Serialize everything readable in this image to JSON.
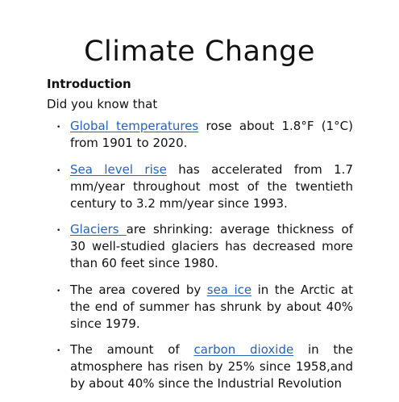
{
  "title": "Climate Change",
  "heading": "Introduction",
  "intro": "Did you know that",
  "bullets": [
    {
      "link": "Global temperatures",
      "text": " rose about 1.8°F (1°C) from 1901 to 2020."
    },
    {
      "link": "Sea level rise",
      "text": " has accelerated from 1.7 mm/year throughout most of the twentieth century to 3.2 mm/year since 1993."
    },
    {
      "link": "Glaciers ",
      "text": "are shrinking: average thickness of 30 well-studied glaciers has decreased more than 60 feet since 1980."
    },
    {
      "before": "The area covered by ",
      "link": "sea ice",
      "text": " in the Arctic at the end of summer has shrunk by about 40% since 1979."
    },
    {
      "before": "The amount of ",
      "link": "carbon dioxide",
      "text": " in the atmosphere has risen by 25% since 1958,and by about 40% since the Industrial Revolution"
    }
  ],
  "colors": {
    "link": "#2563bf",
    "text": "#111111",
    "background": "#ffffff"
  }
}
